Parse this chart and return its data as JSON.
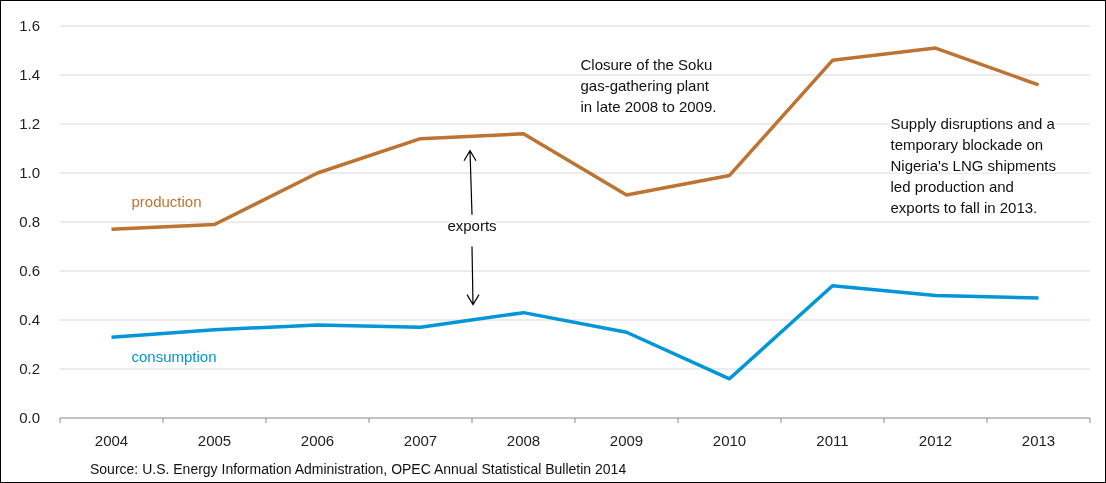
{
  "chart_data": {
    "type": "line",
    "categories": [
      "2004",
      "2005",
      "2006",
      "2007",
      "2008",
      "2009",
      "2010",
      "2011",
      "2012",
      "2013"
    ],
    "series": [
      {
        "name": "production",
        "color": "#bd7332",
        "values": [
          0.77,
          0.79,
          1.0,
          1.14,
          1.16,
          0.91,
          0.99,
          1.46,
          1.51,
          1.36
        ]
      },
      {
        "name": "consumption",
        "color": "#0096d7",
        "values": [
          0.33,
          0.36,
          0.38,
          0.37,
          0.43,
          0.35,
          0.16,
          0.54,
          0.5,
          0.49
        ]
      }
    ],
    "ylim": [
      0,
      1.6
    ],
    "yticks": [
      {
        "value": 0,
        "label": "0.0"
      },
      0.2,
      0.4,
      0.6,
      0.8,
      {
        "value": 1,
        "label": "1.0"
      },
      1.2,
      1.4,
      1.6
    ],
    "grid": "y",
    "line_style": "solid",
    "marker": "none",
    "annotations": [
      "Closure of the Soku\ngas-gathering plant\nin late 2008 to 2009.",
      "Supply disruptions and a\ntemporary blockade on\nNigeria's LNG shipments\nled production and\nexports to fall in 2013.",
      "exports",
      "Source: U.S. Energy Information Administration, OPEC Annual Statistical Bulletin 2014"
    ]
  }
}
